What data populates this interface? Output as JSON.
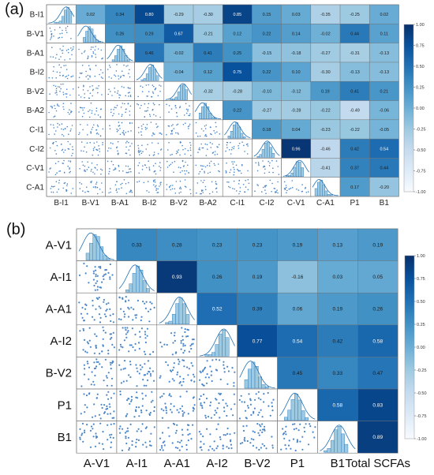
{
  "chart_data": [
    {
      "type": "heatmap",
      "panel_label": "(a)",
      "variables": [
        "B-I1",
        "B-V1",
        "B-A1",
        "B-I2",
        "B-V2",
        "B-A2",
        "C-I1",
        "C-I2",
        "C-V1",
        "C-A1"
      ],
      "column_labels": [
        "B-I1",
        "B-V1",
        "B-A1",
        "B-I2",
        "B-V2",
        "B-A2",
        "C-I1",
        "C-I2",
        "C-V1",
        "C-A1",
        "P1",
        "B1"
      ],
      "upper_values": [
        [
          0.02,
          0.34,
          0.8,
          -0.29,
          -0.3,
          0.85,
          0.15,
          0.03,
          -0.35,
          -0.25,
          0.02
        ],
        [
          0.26,
          0.29,
          0.67,
          -0.21,
          0.12,
          0.22,
          0.14,
          -0.02,
          0.44,
          0.11
        ],
        [
          0.46,
          -0.02,
          0.41,
          0.25,
          -0.15,
          -0.18,
          -0.27,
          -0.31,
          -0.13
        ],
        [
          -0.04,
          0.12,
          0.75,
          0.22,
          0.1,
          -0.3,
          -0.13,
          -0.13
        ],
        [
          -0.32,
          -0.28,
          -0.1,
          -0.12,
          0.19,
          0.41,
          0.21
        ],
        [
          0.22,
          -0.27,
          -0.28,
          -0.22,
          -0.49,
          -0.06
        ],
        [
          0.18,
          0.04,
          -0.23,
          -0.22,
          -0.05
        ],
        [
          0.96,
          -0.46,
          0.42,
          0.54
        ],
        [
          -0.41,
          0.37,
          0.44
        ],
        [
          0.17,
          -0.2
        ]
      ],
      "colorbar_ticks": [
        "1.00",
        "0.75",
        "0.50",
        "0.25",
        "0.00",
        "-0.25",
        "-0.50",
        "-0.75",
        "-1.00"
      ],
      "vmin": -1,
      "vmax": 1
    },
    {
      "type": "heatmap",
      "panel_label": "(b)",
      "variables": [
        "A-V1",
        "A-I1",
        "A-A1",
        "A-I2",
        "B-V2",
        "P1",
        "B1"
      ],
      "column_labels": [
        "A-V1",
        "A-I1",
        "A-A1",
        "A-I2",
        "B-V2",
        "P1",
        "B1",
        "Total SCFAs"
      ],
      "upper_values": [
        [
          0.33,
          0.28,
          0.23,
          0.23,
          0.19,
          0.13,
          0.19
        ],
        [
          0.93,
          0.26,
          0.19,
          -0.16,
          0.03,
          0.05
        ],
        [
          0.52,
          0.39,
          0.06,
          0.19,
          0.26
        ],
        [
          0.77,
          0.54,
          0.42,
          0.58
        ],
        [
          0.45,
          0.33,
          0.47
        ],
        [
          0.58,
          0.83
        ],
        [
          0.89
        ]
      ],
      "colorbar_ticks": [
        "1.00",
        "0.75",
        "0.50",
        "0.25",
        "0.00",
        "-0.25",
        "-0.50",
        "-0.75",
        "-1.00"
      ],
      "vmin": -1,
      "vmax": 1
    }
  ]
}
